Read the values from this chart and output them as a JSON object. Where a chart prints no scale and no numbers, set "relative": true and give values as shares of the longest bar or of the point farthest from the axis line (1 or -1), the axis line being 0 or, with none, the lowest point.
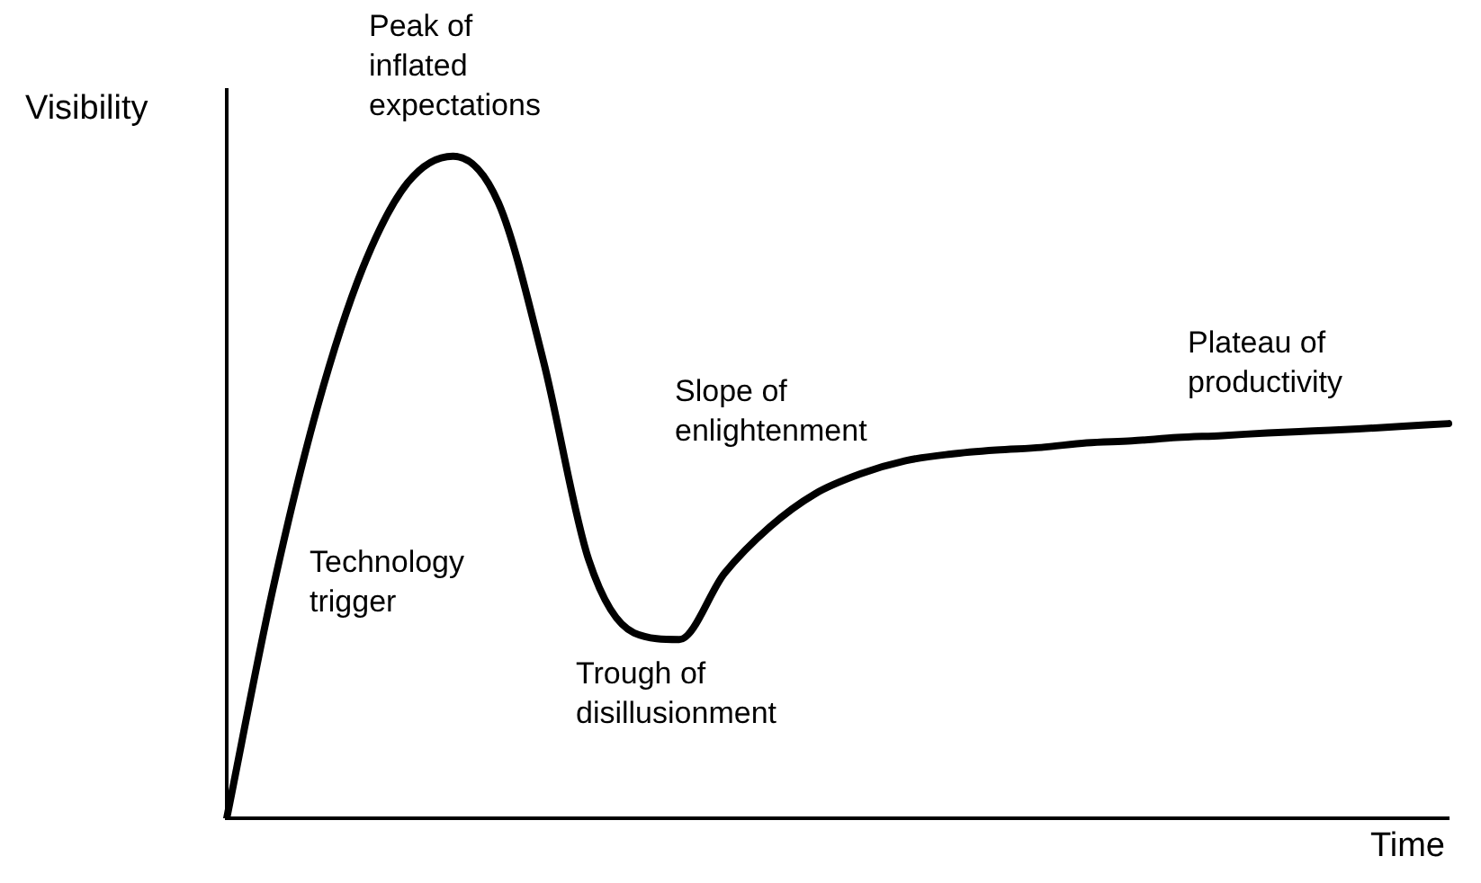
{
  "chart_data": {
    "type": "line",
    "relative": true,
    "xlabel": "Time",
    "ylabel": "Visibility",
    "categories": [
      null,
      null,
      null,
      null,
      null,
      null,
      null,
      null,
      null,
      null,
      null,
      null,
      null,
      null,
      null,
      null,
      null,
      null,
      null,
      null,
      null,
      null,
      null,
      null,
      null,
      null,
      null,
      null
    ],
    "series": [
      {
        "color": "#000000",
        "values": [
          0,
          0.34,
          0.62,
          0.83,
          0.96,
          1,
          0.93,
          0.69,
          0.39,
          0.28,
          0.27,
          0.37,
          0.44,
          0.49,
          0.52,
          0.54,
          0.55,
          0.556,
          0.56,
          0.567,
          0.57,
          0.575,
          0.578,
          0.582,
          0.585,
          0.588,
          0.592,
          0.596
        ]
      }
    ],
    "marker": "none",
    "grid": false,
    "legend": false,
    "tick_labels": false,
    "annotations": [
      "Peak of inflated expectations",
      "Technology trigger",
      "Trough of disillusionment",
      "Slope of enlightenment",
      "Plateau of productivity"
    ]
  }
}
